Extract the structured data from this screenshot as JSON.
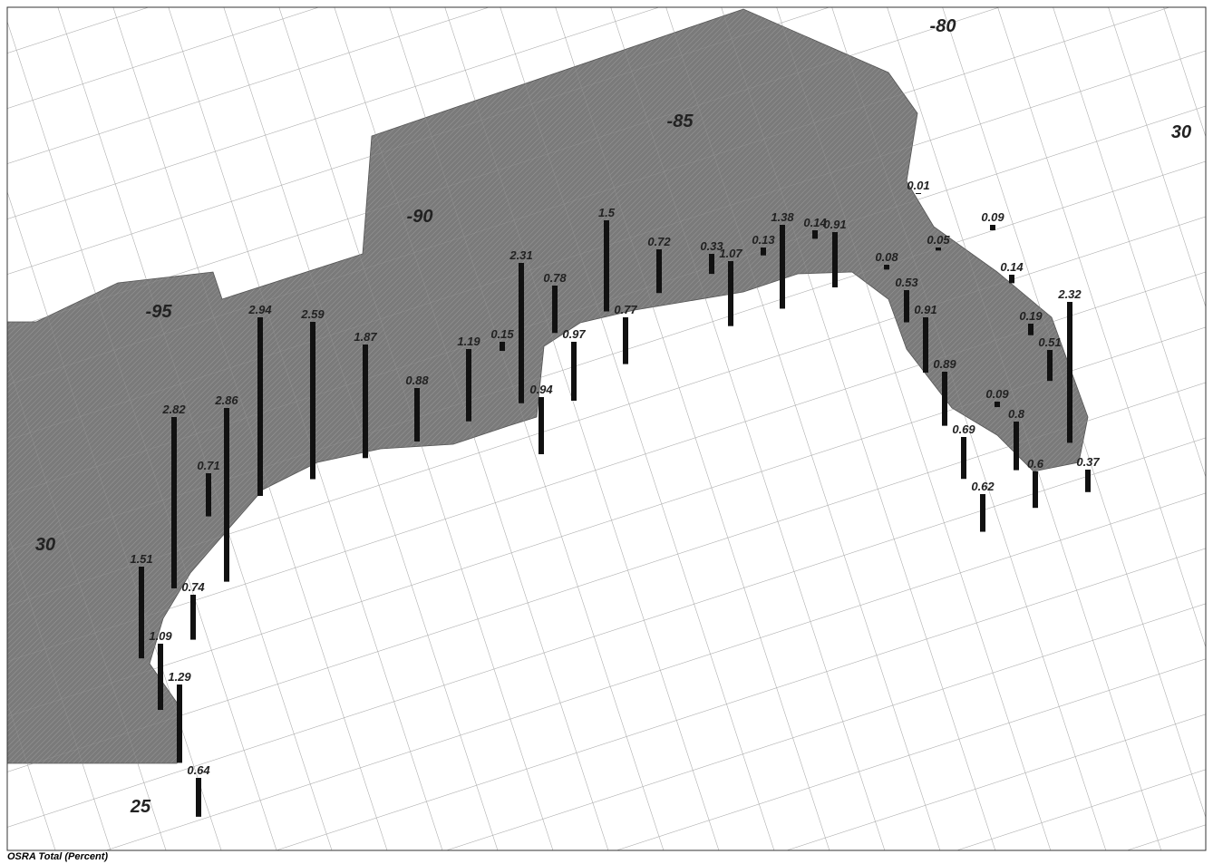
{
  "map": {
    "caption": "OSRA Total (Percent)",
    "grid_labels": [
      "-80",
      "-85",
      "-90",
      "-95",
      "30",
      "30",
      "25"
    ],
    "bars": {
      "values": [
        2.82,
        0.71,
        2.86,
        2.94,
        2.59,
        1.87,
        0.88,
        1.19,
        0.15,
        2.31,
        0.78,
        0.97,
        0.94,
        1.5,
        0.77,
        0.72,
        0.33,
        1.07,
        0.13,
        1.38,
        0.14,
        0.91,
        0.01,
        0.09,
        0.05,
        0.08,
        0.14,
        0.53,
        0.91,
        2.32,
        0.19,
        0.51,
        0.89,
        0.09,
        0.8,
        0.69,
        0.6,
        0.37,
        0.62,
        1.51,
        0.74,
        1.09,
        1.29,
        0.64
      ]
    }
  }
}
